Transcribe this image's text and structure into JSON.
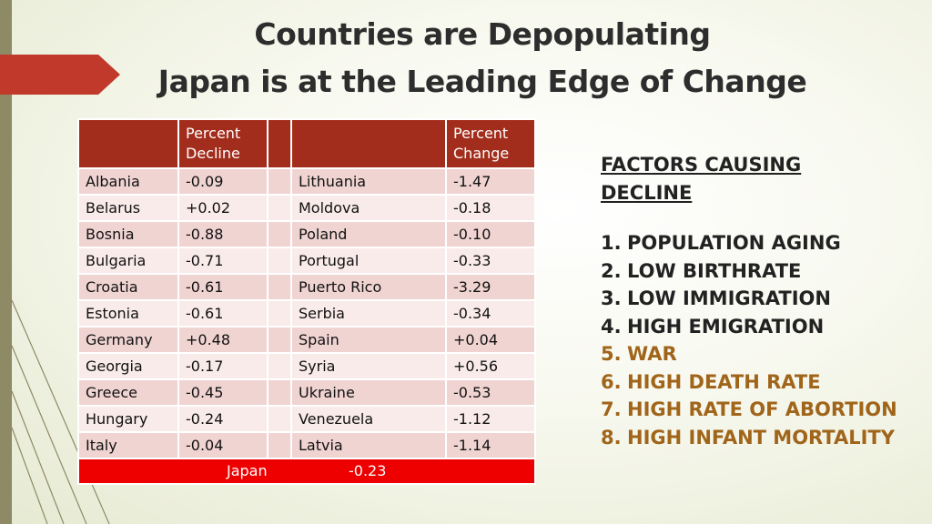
{
  "title": {
    "line1": "Countries are Depopulating",
    "line2": "Japan is at the Leading Edge of Change"
  },
  "table": {
    "headers": {
      "left_country": "",
      "left_value": "Percent Decline",
      "right_country": "",
      "right_value": "Percent Change"
    },
    "rows": [
      {
        "c1": "Albania",
        "v1": "-0.09",
        "c2": "Lithuania",
        "v2": "-1.47"
      },
      {
        "c1": "Belarus",
        "v1": "+0.02",
        "c2": "Moldova",
        "v2": "-0.18"
      },
      {
        "c1": "Bosnia",
        "v1": "-0.88",
        "c2": "Poland",
        "v2": "-0.10"
      },
      {
        "c1": "Bulgaria",
        "v1": "-0.71",
        "c2": "Portugal",
        "v2": "-0.33"
      },
      {
        "c1": "Croatia",
        "v1": "-0.61",
        "c2": "Puerto Rico",
        "v2": "-3.29"
      },
      {
        "c1": "Estonia",
        "v1": "-0.61",
        "c2": "Serbia",
        "v2": "-0.34"
      },
      {
        "c1": "Germany",
        "v1": "+0.48",
        "c2": "Spain",
        "v2": "+0.04"
      },
      {
        "c1": "Georgia",
        "v1": "-0.17",
        "c2": "Syria",
        "v2": "+0.56"
      },
      {
        "c1": "Greece",
        "v1": "-0.45",
        "c2": "Ukraine",
        "v2": "-0.53"
      },
      {
        "c1": "Hungary",
        "v1": "-0.24",
        "c2": "Venezuela",
        "v2": "-1.12"
      },
      {
        "c1": "Italy",
        "v1": "-0.04",
        "c2": "Latvia",
        "v2": "-1.14"
      }
    ],
    "footer": {
      "country": "Japan",
      "value": "-0.23"
    }
  },
  "factors": {
    "title": "FACTORS  CAUSING DECLINE",
    "items": [
      {
        "num": "1.",
        "text": "POPULATION AGING",
        "color": "#222222"
      },
      {
        "num": "2.",
        "text": "LOW BIRTHRATE",
        "color": "#222222"
      },
      {
        "num": "3.",
        "text": "LOW IMMIGRATION",
        "color": "#222222"
      },
      {
        "num": "4.",
        "text": "HIGH EMIGRATION",
        "color": "#222222"
      },
      {
        "num": "5.",
        "text": "WAR",
        "color": "#a0651a"
      },
      {
        "num": "6.",
        "text": "HIGH DEATH RATE",
        "color": "#a0651a"
      },
      {
        "num": "7.",
        "text": "HIGH RATE OF ABORTION",
        "color": "#a0651a"
      },
      {
        "num": "8.",
        "text": "HIGH INFANT MORTALITY",
        "color": "#a0651a"
      }
    ]
  },
  "colors": {
    "header_red": "#a32d1c",
    "footer_red": "#ee0000",
    "accent_tab": "#c0392b",
    "side_bar": "#8f8a66"
  }
}
